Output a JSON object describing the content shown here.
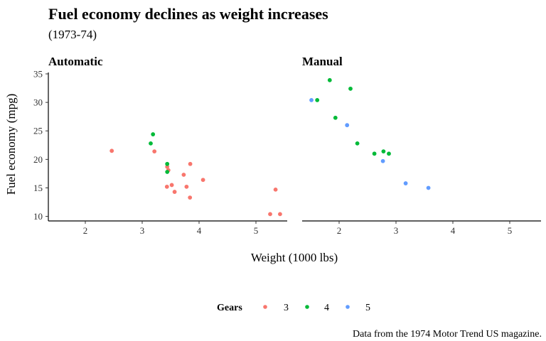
{
  "chart_data": {
    "type": "scatter",
    "title": "Fuel economy declines as weight increases",
    "subtitle": "(1973-74)",
    "xlabel": "Weight (1000 lbs)",
    "ylabel": "Fuel economy (mpg)",
    "caption": "Data from the 1974 Motor Trend US magazine.",
    "xlim": [
      1.35,
      5.55
    ],
    "ylim": [
      9.2,
      35.0
    ],
    "x_ticks": [
      "2",
      "3",
      "4",
      "5"
    ],
    "y_ticks": [
      "10",
      "15",
      "20",
      "25",
      "30",
      "35"
    ],
    "grid": false,
    "legend": {
      "title": "Gears",
      "position": "bottom",
      "entries": [
        {
          "label": "3",
          "color": "#F8766D"
        },
        {
          "label": "4",
          "color": "#00BA38"
        },
        {
          "label": "5",
          "color": "#619CFF"
        }
      ]
    },
    "facets": [
      {
        "label": "Automatic",
        "series": [
          {
            "name": "3",
            "color": "#F8766D",
            "points": [
              {
                "x": 2.465,
                "y": 21.5
              },
              {
                "x": 3.215,
                "y": 21.4
              },
              {
                "x": 3.44,
                "y": 18.7
              },
              {
                "x": 3.46,
                "y": 18.1
              },
              {
                "x": 3.57,
                "y": 14.3
              },
              {
                "x": 4.07,
                "y": 16.4
              },
              {
                "x": 3.73,
                "y": 17.3
              },
              {
                "x": 3.78,
                "y": 15.2
              },
              {
                "x": 5.25,
                "y": 10.4
              },
              {
                "x": 5.424,
                "y": 10.4
              },
              {
                "x": 5.345,
                "y": 14.7
              },
              {
                "x": 3.52,
                "y": 15.5
              },
              {
                "x": 3.435,
                "y": 15.2
              },
              {
                "x": 3.84,
                "y": 13.3
              },
              {
                "x": 3.845,
                "y": 19.2
              }
            ]
          },
          {
            "name": "4",
            "color": "#00BA38",
            "points": [
              {
                "x": 3.19,
                "y": 24.4
              },
              {
                "x": 3.15,
                "y": 22.8
              },
              {
                "x": 3.44,
                "y": 19.2
              },
              {
                "x": 3.44,
                "y": 17.8
              }
            ]
          }
        ]
      },
      {
        "label": "Manual",
        "series": [
          {
            "name": "4",
            "color": "#00BA38",
            "points": [
              {
                "x": 2.62,
                "y": 21.0
              },
              {
                "x": 2.875,
                "y": 21.0
              },
              {
                "x": 2.32,
                "y": 22.8
              },
              {
                "x": 2.2,
                "y": 32.4
              },
              {
                "x": 1.615,
                "y": 30.4
              },
              {
                "x": 1.835,
                "y": 33.9
              },
              {
                "x": 1.935,
                "y": 27.3
              },
              {
                "x": 2.78,
                "y": 21.4
              }
            ]
          },
          {
            "name": "5",
            "color": "#619CFF",
            "points": [
              {
                "x": 2.14,
                "y": 26.0
              },
              {
                "x": 1.513,
                "y": 30.4
              },
              {
                "x": 3.17,
                "y": 15.8
              },
              {
                "x": 2.77,
                "y": 19.7
              },
              {
                "x": 3.57,
                "y": 15.0
              }
            ]
          }
        ]
      }
    ]
  }
}
